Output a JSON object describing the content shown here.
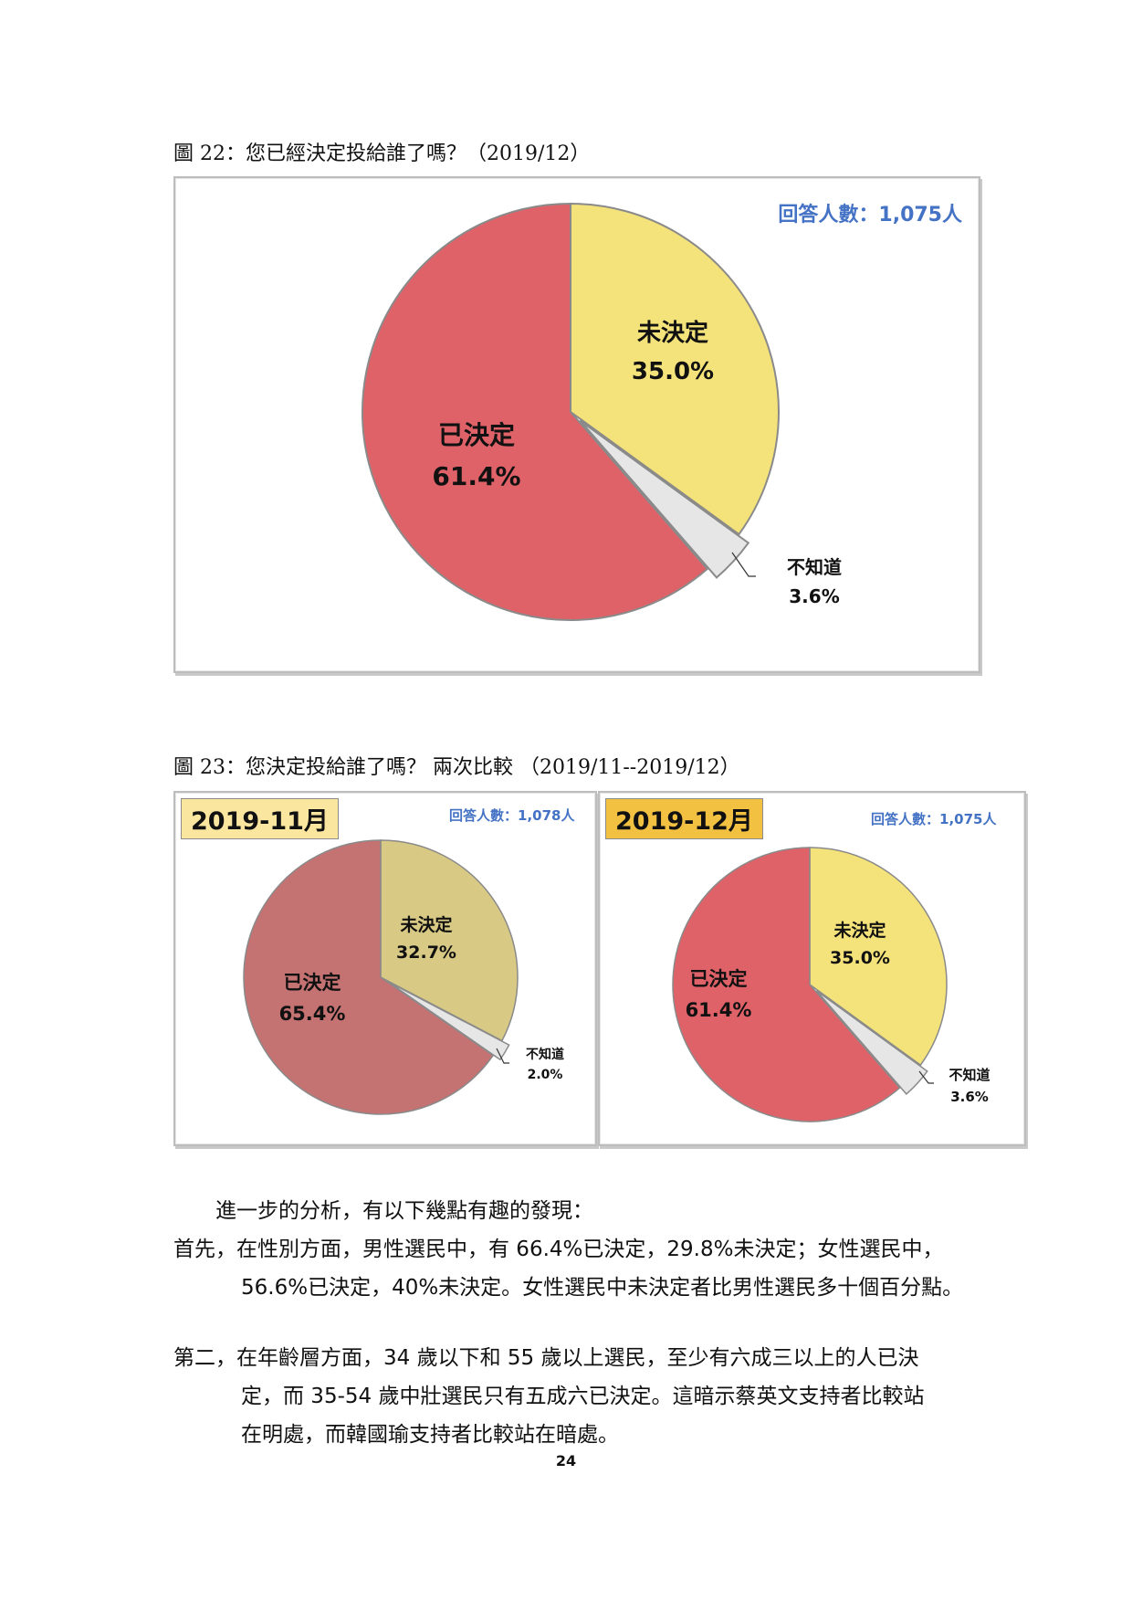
{
  "figure22": {
    "caption": "圖 22：您已經決定投給誰了嗎？（2019/12）",
    "respondents": "回答人數：1,075人"
  },
  "figure23": {
    "caption": "圖 23：您決定投給誰了嗎？ 兩次比較 （2019/11--2019/12）",
    "left": {
      "badge": "2019-11月",
      "respondents": "回答人數：1,078人"
    },
    "right": {
      "badge": "2019-12月",
      "respondents": "回答人數：1,075人"
    }
  },
  "chart_data": [
    {
      "type": "pie",
      "slices": [
        {
          "label": "未決定",
          "value": 35.0,
          "value_text": "35.0%"
        },
        {
          "label": "不知道",
          "value": 3.6,
          "value_text": "3.6%"
        },
        {
          "label": "已決定",
          "value": 61.4,
          "value_text": "61.4%"
        }
      ],
      "colors": [
        "#f4e27a",
        "#e6e6e6",
        "#df6268"
      ]
    },
    {
      "type": "pie",
      "slices": [
        {
          "label": "未決定",
          "value": 32.7,
          "value_text": "32.7%"
        },
        {
          "label": "不知道",
          "value": 2.0,
          "value_text": "2.0%"
        },
        {
          "label": "已決定",
          "value": 65.4,
          "value_text": "65.4%"
        }
      ],
      "colors": [
        "#d8c984",
        "#e6e6e6",
        "#c47272"
      ]
    },
    {
      "type": "pie",
      "slices": [
        {
          "label": "未決定",
          "value": 35.0,
          "value_text": "35.0%"
        },
        {
          "label": "不知道",
          "value": 3.6,
          "value_text": "3.6%"
        },
        {
          "label": "已決定",
          "value": 61.4,
          "value_text": "61.4%"
        }
      ],
      "colors": [
        "#f4e27a",
        "#e6e6e6",
        "#df6268"
      ]
    }
  ],
  "text": {
    "p1": "進一步的分析，有以下幾點有趣的發現：",
    "p2_line1": "首先，在性別方面，男性選民中，有 66.4%已決定，29.8%未決定；女性選民中，",
    "p2_line2": "56.6%已決定，40%未決定。女性選民中未決定者比男性選民多十個百分點。",
    "p3_line1": "第二，在年齡層方面，34 歲以下和 55 歲以上選民，至少有六成三以上的人已決",
    "p3_line2": "定，而 35-54 歲中壯選民只有五成六已決定。這暗示蔡英文支持者比較站",
    "p3_line3": "在明處，而韓國瑜支持者比較站在暗處。",
    "page_number": "24"
  },
  "badge_colors": {
    "nov": "#fbe6a0",
    "dec": "#f3c142"
  }
}
